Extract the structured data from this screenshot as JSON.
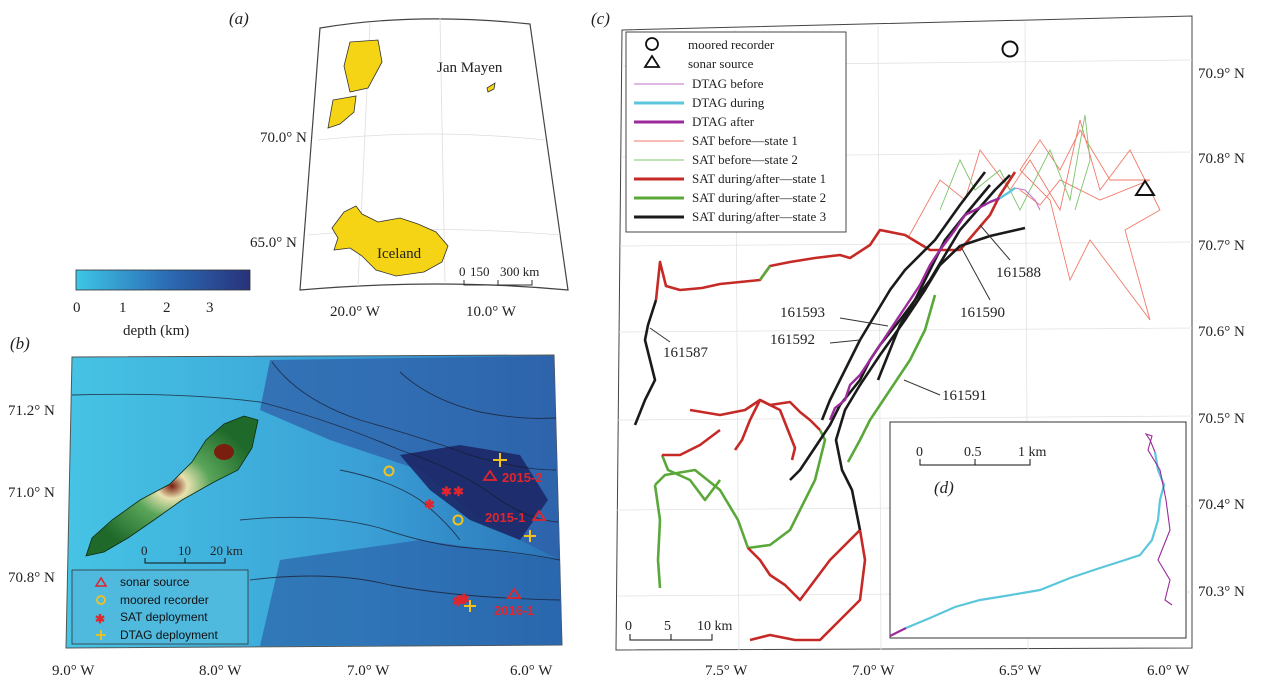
{
  "panel_a": {
    "label": "(a)",
    "place_jan_mayen": "Jan Mayen",
    "place_iceland": "Iceland",
    "lat_labels": [
      "70.0° N",
      "65.0° N"
    ],
    "lon_labels": [
      "20.0° W",
      "10.0° W"
    ],
    "scale_ticks": [
      "0",
      "150",
      "300 km"
    ],
    "land_color": "#f5d416"
  },
  "colorbar": {
    "ticks": [
      "0",
      "1",
      "2",
      "3"
    ],
    "label": "depth (km)",
    "colors": [
      "#3ec6e6",
      "#2c6fb8",
      "#27327a"
    ]
  },
  "panel_b": {
    "label": "(b)",
    "lat_labels": [
      "71.2° N",
      "71.0° N",
      "70.8° N"
    ],
    "lon_labels": [
      "9.0° W",
      "8.0° W",
      "7.0° W",
      "6.0° W"
    ],
    "scale_ticks": [
      "0",
      "10",
      "20 km"
    ],
    "sites": [
      "2015-2",
      "2015-1",
      "2016-1"
    ],
    "legend": [
      {
        "symbol": "triangle",
        "label": "sonar source",
        "color": "#e0262c"
      },
      {
        "symbol": "circle",
        "label": "moored recorder",
        "color": "#f2c21a"
      },
      {
        "symbol": "star",
        "label": "SAT deployment",
        "color": "#e0262c"
      },
      {
        "symbol": "plus",
        "label": "DTAG deployment",
        "color": "#f2c21a"
      }
    ]
  },
  "panel_c": {
    "label": "(c)",
    "lat_labels": [
      "70.9° N",
      "70.8° N",
      "70.7° N",
      "70.6° N",
      "70.5° N",
      "70.4° N",
      "70.3° N"
    ],
    "lon_labels": [
      "7.5° W",
      "7.0° W",
      "6.5° W",
      "6.0° W"
    ],
    "scale_ticks": [
      "0",
      "5",
      "10 km"
    ],
    "track_ids": [
      "161588",
      "161590",
      "161593",
      "161592",
      "161587",
      "161591"
    ],
    "legend": [
      {
        "kind": "circle",
        "label": "moored recorder",
        "color": "#111111"
      },
      {
        "kind": "triangle",
        "label": "sonar source",
        "color": "#111111"
      },
      {
        "kind": "line-thin",
        "label": "DTAG before",
        "color": "#c070c8"
      },
      {
        "kind": "line-thick",
        "label": "DTAG during",
        "color": "#5bc6dc"
      },
      {
        "kind": "line-thick",
        "label": "DTAG after",
        "color": "#9b2a9b"
      },
      {
        "kind": "line-thin",
        "label": "SAT before—state 1",
        "color": "#f07a6a"
      },
      {
        "kind": "line-thin",
        "label": "SAT before—state 2",
        "color": "#7ec46a"
      },
      {
        "kind": "line-thick",
        "label": "SAT during/after—state 1",
        "color": "#c62a26"
      },
      {
        "kind": "line-thick",
        "label": "SAT during/after—state 2",
        "color": "#5aa83a"
      },
      {
        "kind": "line-thick",
        "label": "SAT during/after—state 3",
        "color": "#1a1a1a"
      }
    ]
  },
  "panel_d": {
    "label": "(d)",
    "scale_ticks": [
      "0",
      "0.5",
      "1 km"
    ]
  }
}
